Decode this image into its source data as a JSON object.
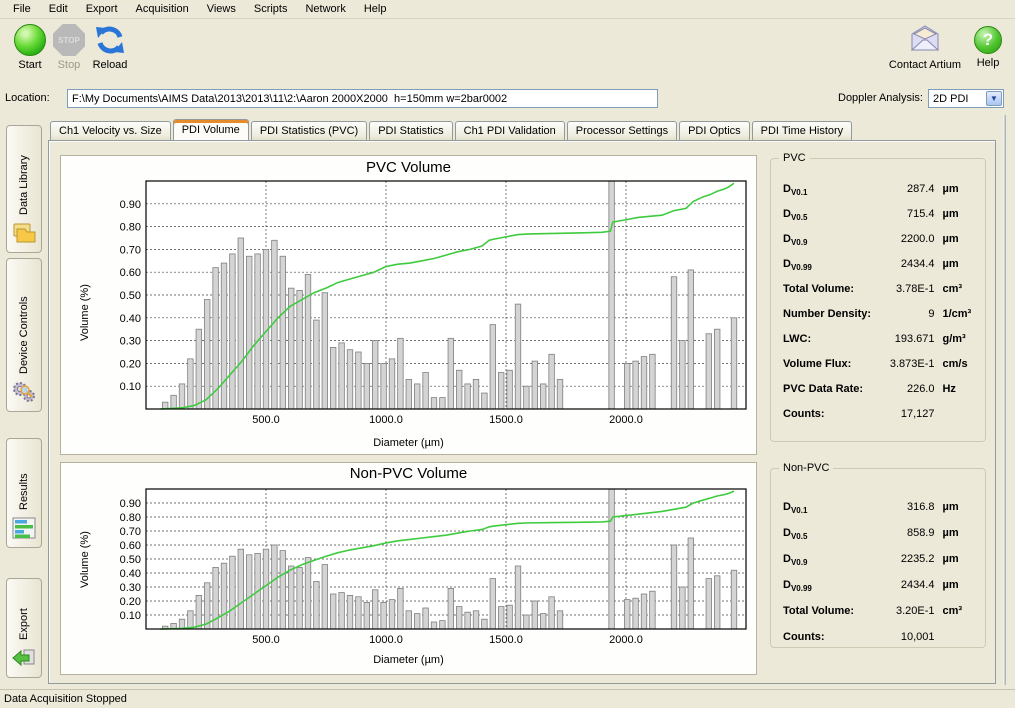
{
  "menu": {
    "items": [
      "File",
      "Edit",
      "Export",
      "Acquisition",
      "Views",
      "Scripts",
      "Network",
      "Help"
    ]
  },
  "toolbar": {
    "start_label": "Start",
    "stop_label": "Stop",
    "stop_icon_text": "STOP",
    "reload_label": "Reload",
    "contact_label": "Contact Artium",
    "help_label": "Help",
    "help_glyph": "?"
  },
  "location": {
    "label": "Location:",
    "value": "F:\\My Documents\\AIMS Data\\2013\\2013\\11\\2:\\Aaron 2000X2000  h=150mm w=2bar0002"
  },
  "doppler": {
    "label": "Doppler Analysis:",
    "value": "2D PDI"
  },
  "sidebar": {
    "items": [
      {
        "label": "Data Library",
        "icon": "folder-icon"
      },
      {
        "label": "Device Controls",
        "icon": "gears-icon"
      },
      {
        "label": "Results",
        "icon": "bar-chart-icon"
      },
      {
        "label": "Export",
        "icon": "export-arrow-icon"
      }
    ]
  },
  "tabs": {
    "active": "PDI Volume",
    "items": [
      "Ch1 Velocity vs. Size",
      "PDI Volume",
      "PDI Statistics (PVC)",
      "PDI Statistics",
      "Ch1 PDI Validation",
      "Processor Settings",
      "PDI Optics",
      "PDI Time History"
    ]
  },
  "stats": {
    "pvc": {
      "title": "PVC",
      "rows": [
        {
          "label": "D",
          "sub": "V0.1",
          "value": "287.4",
          "unit": "µm"
        },
        {
          "label": "D",
          "sub": "V0.5",
          "value": "715.4",
          "unit": "µm"
        },
        {
          "label": "D",
          "sub": "V0.9",
          "value": "2200.0",
          "unit": "µm"
        },
        {
          "label": "D",
          "sub": "V0.99",
          "value": "2434.4",
          "unit": "µm"
        },
        {
          "label": "Total Volume:",
          "value": "3.78E-1",
          "unit": "cm³"
        },
        {
          "label": "Number Density:",
          "value": "9",
          "unit": "1/cm³"
        },
        {
          "label": "LWC:",
          "value": "193.671",
          "unit": "g/m³"
        },
        {
          "label": "Volume Flux:",
          "value": "3.873E-1",
          "unit": "cm/s"
        },
        {
          "label": "PVC Data Rate:",
          "value": "226.0",
          "unit": "Hz"
        },
        {
          "label": "Counts:",
          "value": "17,127",
          "unit": ""
        }
      ]
    },
    "nonpvc": {
      "title": "Non-PVC",
      "rows": [
        {
          "label": "D",
          "sub": "V0.1",
          "value": "316.8",
          "unit": "µm"
        },
        {
          "label": "D",
          "sub": "V0.5",
          "value": "858.9",
          "unit": "µm"
        },
        {
          "label": "D",
          "sub": "V0.9",
          "value": "2235.2",
          "unit": "µm"
        },
        {
          "label": "D",
          "sub": "V0.99",
          "value": "2434.4",
          "unit": "µm"
        },
        {
          "label": "Total Volume:",
          "value": "3.20E-1",
          "unit": "cm³"
        },
        {
          "label": "Counts:",
          "value": "10,001",
          "unit": ""
        }
      ]
    }
  },
  "status_bar": {
    "text": "Data Acquisition Stopped"
  },
  "colors": {
    "window_bg": "#ece9d8",
    "active_tab_accent": "#e68b2c",
    "bar_fill": "#d4d4d4",
    "bar_stroke": "#7f7f7f",
    "cumulative_line": "#3ecb3e",
    "start_button": "#2eb616",
    "textbox_border": "#7f9db9"
  },
  "chart_data": [
    {
      "type": "bar",
      "title": "PVC Volume",
      "xlabel": "Diameter (µm)",
      "ylabel": "Volume (%)",
      "xlim": [
        0,
        2500
      ],
      "ylim": [
        0,
        1.0
      ],
      "xticks": [
        500,
        1000,
        1500,
        2000
      ],
      "yticks": [
        0.1,
        0.2,
        0.3,
        0.4,
        0.5,
        0.6,
        0.7,
        0.8,
        0.9
      ],
      "grid": true,
      "legend": "none",
      "bar_color": "#d4d4d4",
      "bar_stroke": "#7f7f7f",
      "line_color": "#3ecb3e",
      "bars": {
        "x": [
          80,
          115,
          150,
          185,
          220,
          255,
          290,
          325,
          360,
          395,
          430,
          465,
          500,
          535,
          570,
          605,
          640,
          675,
          710,
          745,
          780,
          815,
          850,
          885,
          920,
          955,
          990,
          1025,
          1060,
          1095,
          1130,
          1165,
          1200,
          1235,
          1270,
          1305,
          1340,
          1375,
          1410,
          1445,
          1480,
          1515,
          1550,
          1585,
          1620,
          1655,
          1690,
          1725,
          1940,
          2005,
          2040,
          2075,
          2110,
          2200,
          2235,
          2270,
          2345,
          2380,
          2450
        ],
        "values": [
          0.03,
          0.06,
          0.11,
          0.22,
          0.35,
          0.48,
          0.62,
          0.64,
          0.68,
          0.75,
          0.67,
          0.68,
          0.7,
          0.74,
          0.67,
          0.53,
          0.52,
          0.59,
          0.39,
          0.51,
          0.27,
          0.29,
          0.26,
          0.25,
          0.2,
          0.3,
          0.2,
          0.22,
          0.31,
          0.13,
          0.11,
          0.16,
          0.05,
          0.05,
          0.31,
          0.17,
          0.11,
          0.13,
          0.07,
          0.37,
          0.16,
          0.17,
          0.46,
          0.1,
          0.21,
          0.11,
          0.24,
          0.13,
          1.0,
          0.2,
          0.21,
          0.23,
          0.24,
          0.58,
          0.3,
          0.61,
          0.33,
          0.35,
          0.4
        ]
      },
      "cumulative_line": {
        "x": [
          60,
          150,
          200,
          250,
          300,
          350,
          400,
          450,
          500,
          550,
          600,
          650,
          700,
          750,
          800,
          850,
          900,
          950,
          1000,
          1050,
          1100,
          1150,
          1200,
          1250,
          1300,
          1350,
          1400,
          1430,
          1450,
          1500,
          1550,
          1600,
          1700,
          1800,
          1900,
          1935,
          1945,
          2000,
          2050,
          2100,
          2150,
          2200,
          2250,
          2280,
          2320,
          2350,
          2380,
          2410,
          2430,
          2450
        ],
        "values": [
          0.0,
          0.005,
          0.015,
          0.04,
          0.09,
          0.15,
          0.21,
          0.28,
          0.34,
          0.4,
          0.45,
          0.48,
          0.51,
          0.53,
          0.555,
          0.57,
          0.585,
          0.6,
          0.625,
          0.635,
          0.64,
          0.65,
          0.66,
          0.675,
          0.69,
          0.7,
          0.715,
          0.74,
          0.745,
          0.755,
          0.765,
          0.768,
          0.77,
          0.772,
          0.775,
          0.78,
          0.82,
          0.83,
          0.84,
          0.845,
          0.85,
          0.87,
          0.88,
          0.91,
          0.93,
          0.94,
          0.955,
          0.965,
          0.975,
          0.99
        ]
      }
    },
    {
      "type": "bar",
      "title": "Non-PVC Volume",
      "xlabel": "Diameter (µm)",
      "ylabel": "Volume (%)",
      "xlim": [
        0,
        2500
      ],
      "ylim": [
        0,
        1.0
      ],
      "xticks": [
        500,
        1000,
        1500,
        2000
      ],
      "yticks": [
        0.1,
        0.2,
        0.3,
        0.4,
        0.5,
        0.6,
        0.7,
        0.8,
        0.9
      ],
      "grid": true,
      "legend": "none",
      "bar_color": "#d4d4d4",
      "bar_stroke": "#7f7f7f",
      "line_color": "#3ecb3e",
      "bars": {
        "x": [
          80,
          115,
          150,
          185,
          220,
          255,
          290,
          325,
          360,
          395,
          430,
          465,
          500,
          535,
          570,
          605,
          640,
          675,
          710,
          745,
          780,
          815,
          850,
          885,
          920,
          955,
          990,
          1025,
          1060,
          1095,
          1130,
          1165,
          1200,
          1235,
          1270,
          1305,
          1340,
          1375,
          1410,
          1445,
          1480,
          1515,
          1550,
          1585,
          1620,
          1655,
          1690,
          1725,
          1940,
          2005,
          2040,
          2075,
          2110,
          2200,
          2235,
          2270,
          2345,
          2380,
          2450
        ],
        "values": [
          0.02,
          0.04,
          0.07,
          0.13,
          0.24,
          0.33,
          0.44,
          0.47,
          0.52,
          0.57,
          0.53,
          0.54,
          0.57,
          0.6,
          0.56,
          0.45,
          0.44,
          0.51,
          0.34,
          0.46,
          0.25,
          0.26,
          0.24,
          0.23,
          0.19,
          0.28,
          0.19,
          0.21,
          0.29,
          0.13,
          0.11,
          0.15,
          0.05,
          0.06,
          0.29,
          0.16,
          0.12,
          0.13,
          0.07,
          0.36,
          0.16,
          0.17,
          0.45,
          0.1,
          0.2,
          0.11,
          0.23,
          0.13,
          1.0,
          0.21,
          0.22,
          0.25,
          0.27,
          0.6,
          0.3,
          0.65,
          0.36,
          0.38,
          0.42
        ]
      },
      "cumulative_line": {
        "x": [
          60,
          150,
          200,
          250,
          300,
          350,
          400,
          450,
          500,
          550,
          600,
          650,
          700,
          750,
          800,
          850,
          900,
          950,
          1000,
          1050,
          1100,
          1150,
          1200,
          1250,
          1300,
          1350,
          1400,
          1430,
          1450,
          1500,
          1550,
          1600,
          1700,
          1800,
          1900,
          1935,
          1945,
          2000,
          2050,
          2100,
          2150,
          2200,
          2250,
          2280,
          2320,
          2350,
          2380,
          2410,
          2430,
          2450
        ],
        "values": [
          0.0,
          0.004,
          0.012,
          0.035,
          0.08,
          0.13,
          0.19,
          0.25,
          0.31,
          0.37,
          0.42,
          0.46,
          0.49,
          0.52,
          0.545,
          0.565,
          0.58,
          0.595,
          0.615,
          0.63,
          0.64,
          0.65,
          0.66,
          0.67,
          0.685,
          0.7,
          0.71,
          0.73,
          0.735,
          0.745,
          0.755,
          0.758,
          0.76,
          0.762,
          0.765,
          0.77,
          0.8,
          0.81,
          0.82,
          0.83,
          0.84,
          0.855,
          0.87,
          0.9,
          0.92,
          0.935,
          0.95,
          0.96,
          0.97,
          0.985
        ]
      }
    }
  ]
}
